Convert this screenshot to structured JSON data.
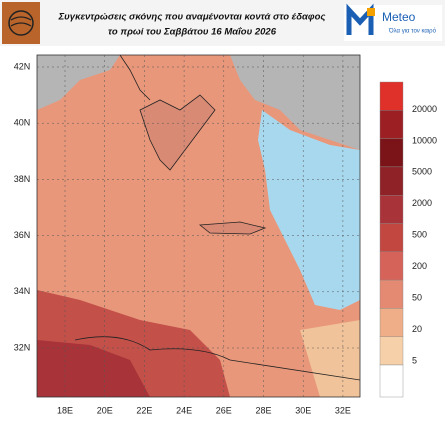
{
  "header": {
    "title_line1": "Συγκεντρώσεις σκόνης που αναμένονται κοντά στο έδαφος",
    "title_line2": "το πρωί του Σαββάτου 16 Μαΐου 2026",
    "logo_name": "Meteo",
    "logo_tagline": "Όλα για τον καιρό"
  },
  "map": {
    "lat_labels": [
      "42N",
      "40N",
      "38N",
      "36N",
      "34N",
      "32N"
    ],
    "lon_labels": [
      "18E",
      "20E",
      "22E",
      "24E",
      "26E",
      "28E",
      "30E",
      "32E"
    ]
  },
  "legend": {
    "levels": [
      "20000",
      "10000",
      "5000",
      "2000",
      "500",
      "200",
      "50",
      "20",
      "5"
    ]
  }
}
